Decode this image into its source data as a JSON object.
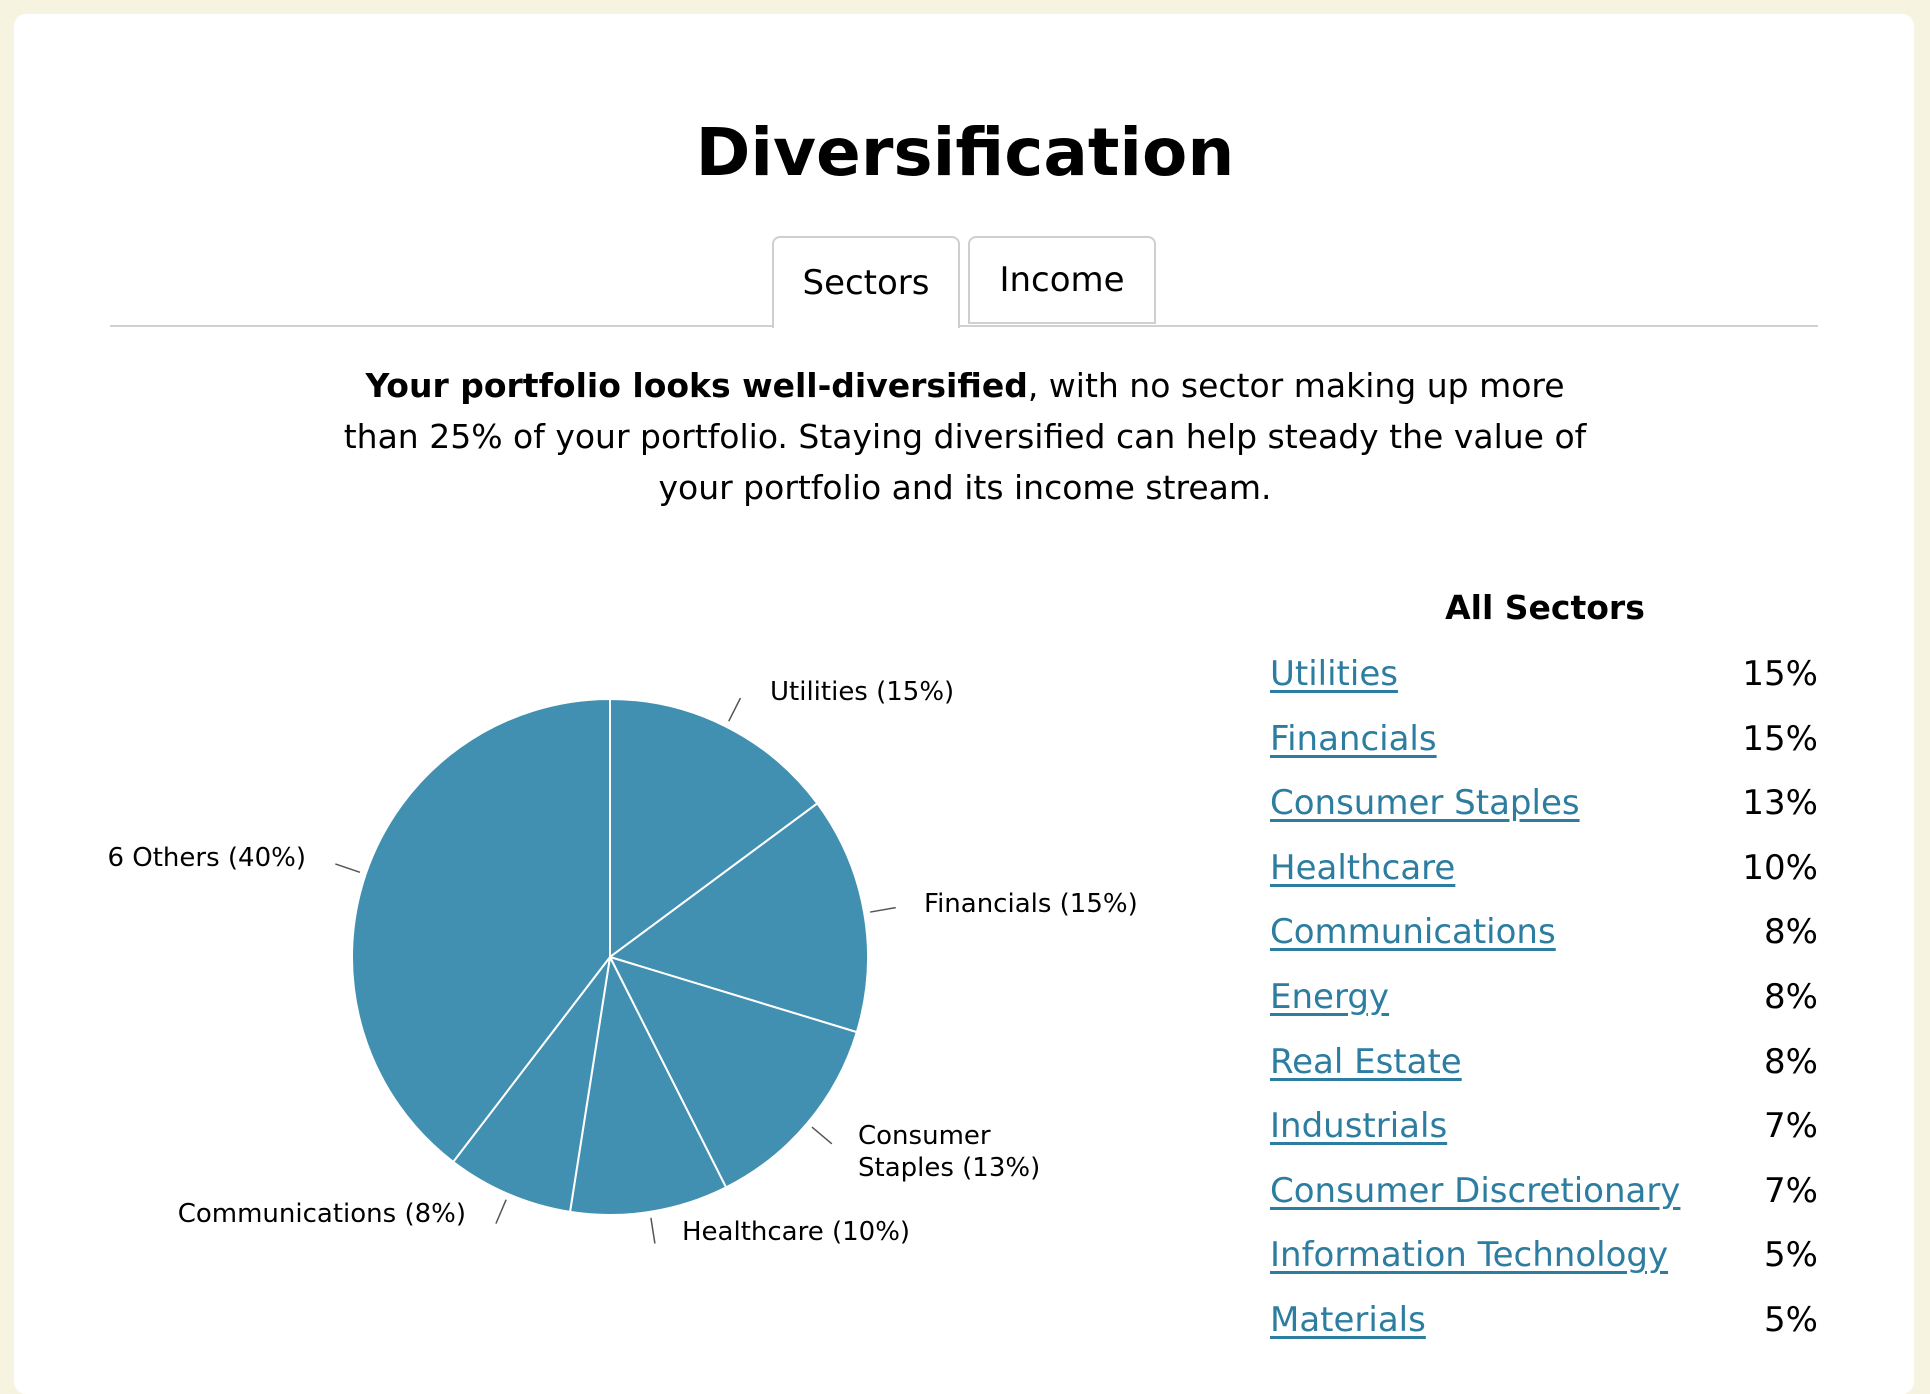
{
  "title": "Diversification",
  "tabs": [
    {
      "label": "Sectors",
      "active": true
    },
    {
      "label": "Income",
      "active": false
    }
  ],
  "summary": {
    "bold": "Your portfolio looks well-diversified",
    "rest": ", with no sector making up more than 25% of your portfolio. Staying diversified can help steady the value of your portfolio and its income stream."
  },
  "chart_data": {
    "type": "pie",
    "slices": [
      {
        "label": "Utilities (15%)",
        "value": 15
      },
      {
        "label": "Financials (15%)",
        "value": 15
      },
      {
        "label": "Consumer Staples (13%)",
        "value": 13
      },
      {
        "label": "Healthcare (10%)",
        "value": 10
      },
      {
        "label": "Communications (8%)",
        "value": 8
      },
      {
        "label": "6 Others (40%)",
        "value": 40
      }
    ],
    "slice_color": "#4190b1",
    "border_color": "#ffffff"
  },
  "sectors": {
    "title": "All Sectors",
    "items": [
      {
        "name": "Utilities",
        "pct": "15%"
      },
      {
        "name": "Financials",
        "pct": "15%"
      },
      {
        "name": "Consumer Staples",
        "pct": "13%"
      },
      {
        "name": "Healthcare",
        "pct": "10%"
      },
      {
        "name": "Communications",
        "pct": "8%"
      },
      {
        "name": "Energy",
        "pct": "8%"
      },
      {
        "name": "Real Estate",
        "pct": "8%"
      },
      {
        "name": "Industrials",
        "pct": "7%"
      },
      {
        "name": "Consumer Discretionary",
        "pct": "7%"
      },
      {
        "name": "Information Technology",
        "pct": "5%"
      },
      {
        "name": "Materials",
        "pct": "5%"
      }
    ]
  },
  "colors": {
    "link": "#2c7da0",
    "background": "#f6f3e1"
  }
}
